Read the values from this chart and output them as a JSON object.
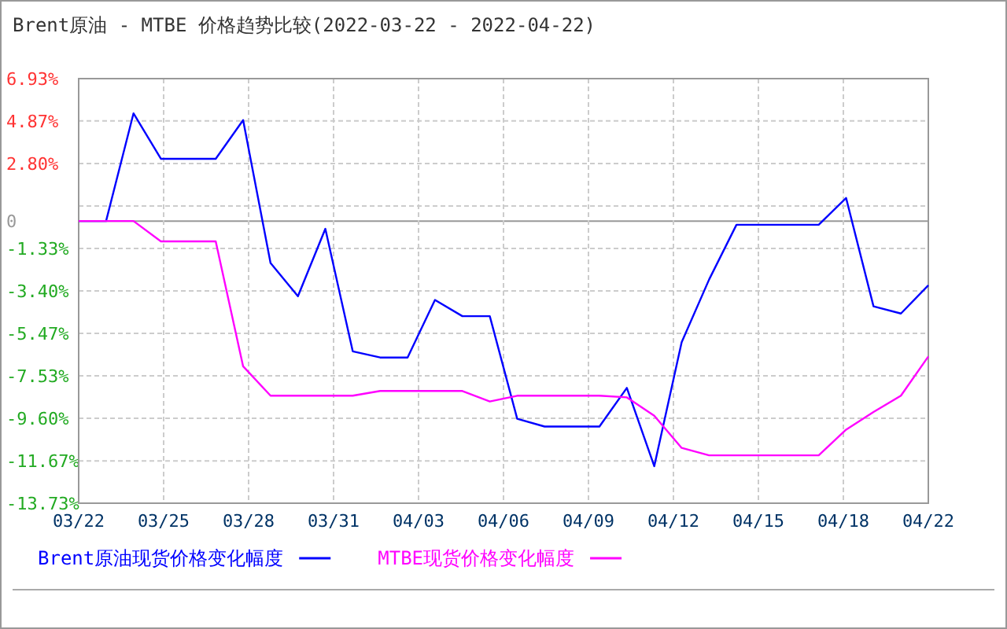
{
  "chart_data": {
    "type": "line",
    "title": "Brent原油 - MTBE 价格趋势比较(2022-03-22 - 2022-04-22)",
    "x": [
      "2022-03-22",
      "2022-03-23",
      "2022-03-24",
      "2022-03-25",
      "2022-03-26",
      "2022-03-27",
      "2022-03-28",
      "2022-03-29",
      "2022-03-30",
      "2022-03-31",
      "2022-04-01",
      "2022-04-02",
      "2022-04-03",
      "2022-04-04",
      "2022-04-05",
      "2022-04-06",
      "2022-04-07",
      "2022-04-08",
      "2022-04-09",
      "2022-04-10",
      "2022-04-11",
      "2022-04-12",
      "2022-04-13",
      "2022-04-14",
      "2022-04-15",
      "2022-04-16",
      "2022-04-17",
      "2022-04-18",
      "2022-04-19",
      "2022-04-20",
      "2022-04-21",
      "2022-04-22"
    ],
    "series": [
      {
        "name": "Brent原油现货价格变化幅度",
        "color": "#0000ff",
        "values": [
          0,
          0,
          5.24,
          3.03,
          3.03,
          3.03,
          4.91,
          -2.04,
          -3.66,
          -0.38,
          -6.34,
          -6.64,
          -6.64,
          -3.84,
          -4.63,
          -4.63,
          -9.62,
          -10.0,
          -10.0,
          -10.0,
          -8.12,
          -11.93,
          -5.9,
          -2.85,
          -0.18,
          -0.18,
          -0.18,
          -0.18,
          1.12,
          -4.15,
          -4.5,
          -3.13
        ]
      },
      {
        "name": "MTBE现货价格变化幅度",
        "color": "#ff00ff",
        "values": [
          0,
          0,
          0,
          -0.99,
          -0.99,
          -0.99,
          -7.07,
          -8.5,
          -8.5,
          -8.5,
          -8.5,
          -8.27,
          -8.27,
          -8.27,
          -8.27,
          -8.78,
          -8.5,
          -8.5,
          -8.5,
          -8.5,
          -8.58,
          -9.47,
          -11.04,
          -11.4,
          -11.4,
          -11.4,
          -11.4,
          -11.4,
          -10.15,
          -9.29,
          -8.5,
          -6.59
        ]
      }
    ],
    "xlim": [
      "2022-03-22",
      "2022-04-22"
    ],
    "xticks": [
      {
        "value": "2022-03-22",
        "label": "03/22"
      },
      {
        "value": "2022-03-25T02:24",
        "label": "03/25"
      },
      {
        "value": "2022-03-28T04:48",
        "label": "03/28"
      },
      {
        "value": "2022-03-31T07:12",
        "label": "03/31"
      },
      {
        "value": "2022-04-03T09:36",
        "label": "04/03"
      },
      {
        "value": "2022-04-06T12:00",
        "label": "04/06"
      },
      {
        "value": "2022-04-09T14:24",
        "label": "04/09"
      },
      {
        "value": "2022-04-12T16:48",
        "label": "04/12"
      },
      {
        "value": "2022-04-15T19:12",
        "label": "04/15"
      },
      {
        "value": "2022-04-18T21:36",
        "label": "04/18"
      },
      {
        "value": "2022-04-22",
        "label": "04/22"
      }
    ],
    "ylim": [
      -13.73,
      6.93
    ],
    "yticks": [
      {
        "value": 6.93,
        "label": "6.93%"
      },
      {
        "value": 4.87,
        "label": "4.87%"
      },
      {
        "value": 2.8,
        "label": "2.80%"
      },
      {
        "value": 0.73,
        "label": null
      },
      {
        "value": 0,
        "label": "0"
      },
      {
        "value": -1.33,
        "label": "-1.33%"
      },
      {
        "value": -3.4,
        "label": "-3.40%"
      },
      {
        "value": -5.47,
        "label": "-5.47%"
      },
      {
        "value": -7.53,
        "label": "-7.53%"
      },
      {
        "value": -9.6,
        "label": "-9.60%"
      },
      {
        "value": -11.67,
        "label": "-11.67%"
      },
      {
        "value": -13.73,
        "label": "-13.73%"
      }
    ],
    "grid": true,
    "legend": "bottom",
    "marker": "none",
    "line_style": "solid"
  }
}
